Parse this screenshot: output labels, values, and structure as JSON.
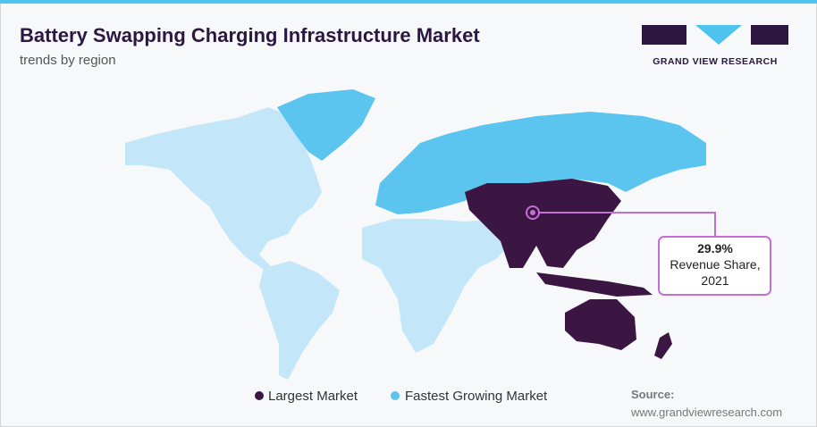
{
  "header": {
    "title": "Battery Swapping Charging Infrastructure Market",
    "subtitle": "trends by region"
  },
  "logo": {
    "text": "GRAND VIEW RESEARCH"
  },
  "callout": {
    "value": "29.9%",
    "line1": "Revenue Share,",
    "line2": "2021"
  },
  "legend": {
    "items": [
      "Largest Market",
      "Fastest Growing Market"
    ]
  },
  "source": {
    "label": "Source:",
    "url": "www.grandviewresearch.com"
  }
}
